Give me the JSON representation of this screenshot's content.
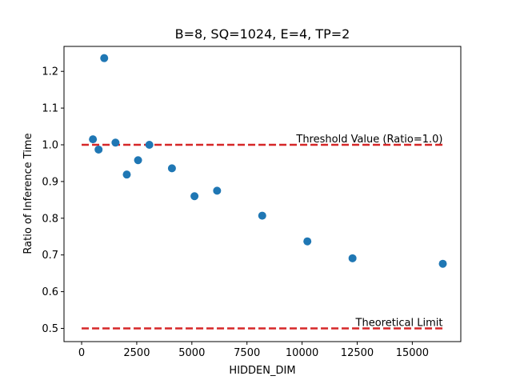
{
  "chart_data": {
    "type": "scatter",
    "title": "B=8, SQ=1024, E=4, TP=2",
    "xlabel": "HIDDEN_DIM",
    "ylabel": "Ratio of Inference Time",
    "xlim": [
      -800,
      17200
    ],
    "ylim": [
      0.464,
      1.268
    ],
    "xticks": [
      0,
      2500,
      5000,
      7500,
      10000,
      12500,
      15000
    ],
    "xtick_labels": [
      "0",
      "2500",
      "5000",
      "7500",
      "10000",
      "12500",
      "15000"
    ],
    "yticks": [
      0.5,
      0.6,
      0.7,
      0.8,
      0.9,
      1.0,
      1.1,
      1.2
    ],
    "ytick_labels": [
      "0.5",
      "0.6",
      "0.7",
      "0.8",
      "0.9",
      "1.0",
      "1.1",
      "1.2"
    ],
    "grid": false,
    "points": [
      {
        "x": 512,
        "y": 1.015
      },
      {
        "x": 768,
        "y": 0.987
      },
      {
        "x": 1024,
        "y": 1.236
      },
      {
        "x": 1536,
        "y": 1.006
      },
      {
        "x": 2048,
        "y": 0.919
      },
      {
        "x": 2560,
        "y": 0.958
      },
      {
        "x": 3072,
        "y": 1.0
      },
      {
        "x": 4096,
        "y": 0.936
      },
      {
        "x": 5120,
        "y": 0.86
      },
      {
        "x": 6144,
        "y": 0.875
      },
      {
        "x": 8192,
        "y": 0.807
      },
      {
        "x": 10240,
        "y": 0.737
      },
      {
        "x": 12288,
        "y": 0.691
      },
      {
        "x": 16384,
        "y": 0.676
      }
    ],
    "point_color": "#1f77b4",
    "reference_lines": [
      {
        "y": 1.0,
        "x_from": 0,
        "x_to": 16384,
        "label": "Threshold Value (Ratio=1.0)",
        "color": "#d62728"
      },
      {
        "y": 0.5,
        "x_from": 0,
        "x_to": 16384,
        "label": "Theoretical Limit",
        "color": "#d62728"
      }
    ]
  }
}
